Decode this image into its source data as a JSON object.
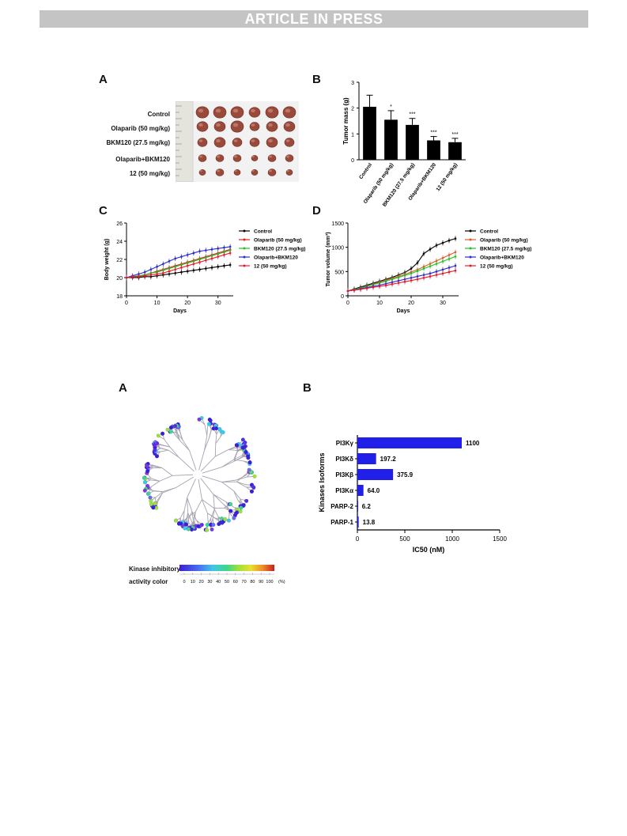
{
  "banner": "ARTICLE IN PRESS",
  "fig1": {
    "A": {
      "label": "A",
      "groups": [
        "Control",
        "Olaparib (50 mg/kg)",
        "BKM120 (27.5 mg/kg)",
        "Olaparib+BKM120",
        "12 (50 mg/kg)"
      ]
    },
    "B": {
      "label": "B",
      "chart_data": {
        "type": "bar",
        "ylabel": "Tumor mass (g)",
        "ylim": [
          0,
          3
        ],
        "yticks": [
          "0",
          "1",
          "2",
          "3"
        ],
        "categories": [
          "Control",
          "Olaparib (50 mg/kg)",
          "BKM120 (27.5 mg/kg)",
          "Olaparib+BKM120",
          "12 (50 mg/kg)"
        ],
        "values": [
          2.05,
          1.55,
          1.35,
          0.75,
          0.68
        ],
        "errors": [
          0.45,
          0.35,
          0.25,
          0.15,
          0.15
        ],
        "significance": [
          "",
          "*",
          "***",
          "***",
          "***"
        ]
      }
    },
    "C": {
      "label": "C",
      "chart_data": {
        "type": "line",
        "xlabel": "Days",
        "ylabel": "Body weight (g)",
        "xlim": [
          0,
          35
        ],
        "ylim": [
          18,
          26
        ],
        "xticks": [
          "0",
          "10",
          "20",
          "30"
        ],
        "yticks": [
          "18",
          "20",
          "22",
          "24",
          "26"
        ],
        "x": [
          0,
          2,
          4,
          6,
          8,
          10,
          12,
          14,
          16,
          18,
          20,
          22,
          24,
          26,
          28,
          30,
          32,
          34
        ],
        "series": [
          {
            "name": "Control",
            "color": "#000000",
            "values": [
              20.0,
              20.0,
              20.0,
              20.1,
              20.1,
              20.2,
              20.3,
              20.4,
              20.5,
              20.6,
              20.7,
              20.8,
              20.9,
              21.0,
              21.1,
              21.2,
              21.3,
              21.4
            ]
          },
          {
            "name": "Olaparib (50 mg/kg)",
            "color": "#e02020",
            "values": [
              20.0,
              20.1,
              20.2,
              20.3,
              20.5,
              20.7,
              20.9,
              21.1,
              21.3,
              21.5,
              21.7,
              21.9,
              22.1,
              22.3,
              22.5,
              22.7,
              22.9,
              23.1
            ]
          },
          {
            "name": "BKM120 (27.5 mg/kg)",
            "color": "#22c022",
            "values": [
              20.0,
              20.1,
              20.2,
              20.3,
              20.5,
              20.6,
              20.8,
              21.0,
              21.2,
              21.4,
              21.6,
              21.8,
              22.0,
              22.2,
              22.4,
              22.6,
              22.8,
              23.0
            ]
          },
          {
            "name": "Olaparib+BKM120",
            "color": "#2a2ad0",
            "values": [
              20.0,
              20.2,
              20.4,
              20.6,
              20.9,
              21.2,
              21.5,
              21.8,
              22.1,
              22.3,
              22.5,
              22.7,
              22.9,
              23.0,
              23.1,
              23.2,
              23.3,
              23.4
            ]
          },
          {
            "name": "12 (50 mg/kg)",
            "color": "#e8192c",
            "values": [
              20.0,
              20.1,
              20.1,
              20.2,
              20.3,
              20.4,
              20.5,
              20.7,
              20.9,
              21.1,
              21.3,
              21.5,
              21.7,
              21.9,
              22.1,
              22.3,
              22.5,
              22.7
            ]
          }
        ]
      }
    },
    "D": {
      "label": "D",
      "chart_data": {
        "type": "line",
        "xlabel": "Days",
        "ylabel": "Tumor volume (mm³)",
        "xlim": [
          0,
          35
        ],
        "ylim": [
          0,
          1500
        ],
        "xticks": [
          "0",
          "10",
          "20",
          "30"
        ],
        "yticks": [
          "0",
          "500",
          "1000",
          "1500"
        ],
        "x": [
          0,
          2,
          4,
          6,
          8,
          10,
          12,
          14,
          16,
          18,
          20,
          22,
          24,
          26,
          28,
          30,
          32,
          34
        ],
        "series": [
          {
            "name": "Control",
            "color": "#000000",
            "values": [
              100,
              140,
              180,
              220,
              260,
              300,
              340,
              380,
              430,
              480,
              560,
              680,
              870,
              960,
              1040,
              1090,
              1140,
              1180
            ]
          },
          {
            "name": "Olaparib (50 mg/kg)",
            "color": "#e05a2a",
            "values": [
              100,
              130,
              165,
              200,
              240,
              280,
              320,
              360,
              400,
              440,
              490,
              540,
              600,
              660,
              720,
              780,
              840,
              900
            ]
          },
          {
            "name": "BKM120 (27.5 mg/kg)",
            "color": "#22c022",
            "values": [
              100,
              130,
              160,
              195,
              230,
              265,
              300,
              340,
              380,
              420,
              460,
              510,
              560,
              610,
              660,
              710,
              760,
              810
            ]
          },
          {
            "name": "Olaparib+BKM120",
            "color": "#2a2ad0",
            "values": [
              100,
              120,
              145,
              170,
              195,
              220,
              250,
              280,
              310,
              340,
              370,
              400,
              430,
              460,
              500,
              540,
              580,
              620
            ]
          },
          {
            "name": "12 (50 mg/kg)",
            "color": "#e8192c",
            "values": [
              100,
              115,
              135,
              155,
              175,
              195,
              215,
              240,
              265,
              290,
              315,
              340,
              370,
              400,
              430,
              460,
              490,
              520
            ]
          }
        ]
      }
    }
  },
  "fig2": {
    "A": {
      "label": "A",
      "legend_title_1": "Kinase inhibitory",
      "legend_title_2": "activity color",
      "scale_ticks": [
        "0",
        "10",
        "20",
        "30",
        "40",
        "50",
        "60",
        "70",
        "80",
        "90",
        "100"
      ],
      "scale_unit": "(%)"
    },
    "B": {
      "label": "B",
      "chart_data": {
        "type": "bar",
        "orientation": "horizontal",
        "color": "#2020e8",
        "ylabel": "Kinases Isoforms",
        "xlabel": "IC50 (nM)",
        "xlim": [
          0,
          1500
        ],
        "xticks": [
          "0",
          "500",
          "1000",
          "1500"
        ],
        "categories": [
          "PI3Kγ",
          "PI3Kδ",
          "PI3Kβ",
          "PI3Kα",
          "PARP-2",
          "PARP-1"
        ],
        "values": [
          1100,
          197.2,
          375.9,
          64.0,
          6.2,
          13.8
        ],
        "value_labels": [
          "1100",
          "197.2",
          "375.9",
          "64.0",
          "6.2",
          "13.8"
        ]
      }
    }
  }
}
